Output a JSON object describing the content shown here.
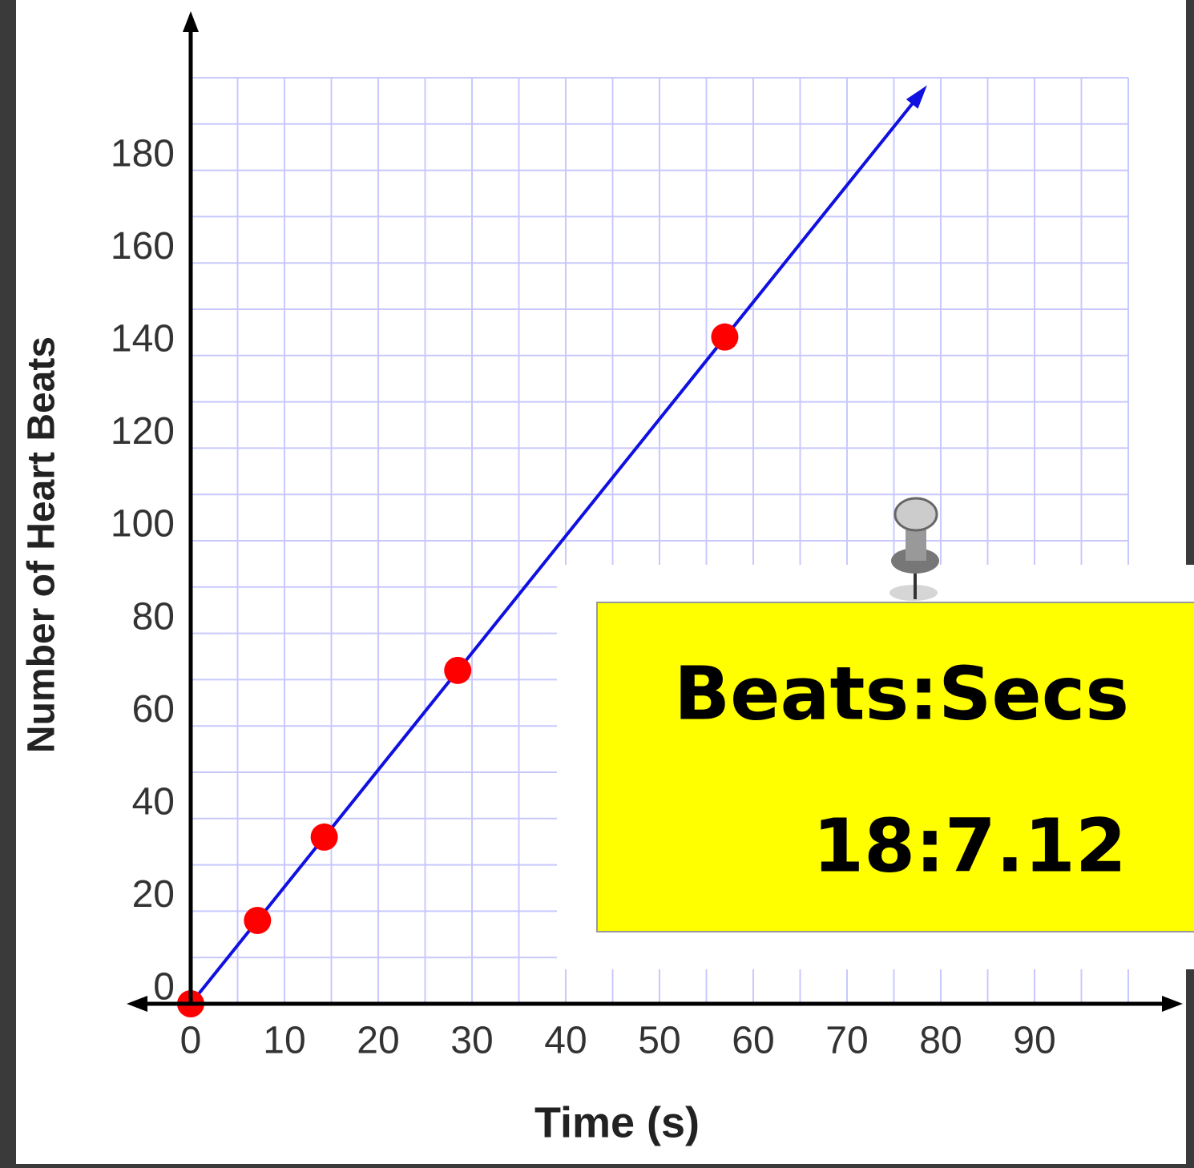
{
  "chart_data": {
    "type": "scatter",
    "xlabel": "Time (s)",
    "ylabel": "Number of Heart Beats",
    "x": [
      0,
      7.12,
      14.24,
      28.48,
      56.96
    ],
    "values": [
      0,
      18,
      36,
      72,
      144
    ],
    "color": "#ff0000",
    "fit_line": {
      "color": "#1010e0",
      "x": [
        0,
        78
      ],
      "values": [
        0,
        197
      ]
    },
    "xlim": [
      0,
      100
    ],
    "ylim": [
      0,
      200
    ],
    "xticks": [
      0,
      10,
      20,
      30,
      40,
      50,
      60,
      70,
      80,
      90
    ],
    "yticks": [
      0,
      20,
      40,
      60,
      80,
      100,
      120,
      140,
      160,
      180
    ],
    "grid_color": "#c8c8ff",
    "x_grid": [
      0,
      5,
      10,
      15,
      20,
      25,
      30,
      35,
      40,
      45,
      50,
      55,
      60,
      65,
      70,
      75,
      80,
      85,
      90,
      95,
      100
    ],
    "y_grid": [
      0,
      10,
      20,
      30,
      40,
      50,
      60,
      70,
      80,
      90,
      100,
      110,
      120,
      130,
      140,
      150,
      160,
      170,
      180,
      190,
      200
    ],
    "annotation": {
      "lines": [
        "Beats:Secs",
        "18:7.12"
      ],
      "background": "#ffff00"
    }
  }
}
